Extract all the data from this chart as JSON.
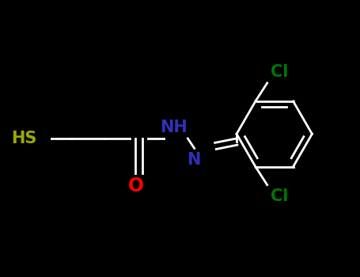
{
  "background_color": "#000000",
  "line_color": "#ffffff",
  "lw": 2.0,
  "hs_color": "#9aaa00",
  "o_color": "#ff0000",
  "n_color": "#3030bb",
  "cl_color": "#007700",
  "figsize": [
    4.55,
    3.5
  ],
  "dpi": 100,
  "xlim": [
    0.0,
    5.5
  ],
  "ylim": [
    0.3,
    3.2
  ],
  "label_fontsize": 15
}
